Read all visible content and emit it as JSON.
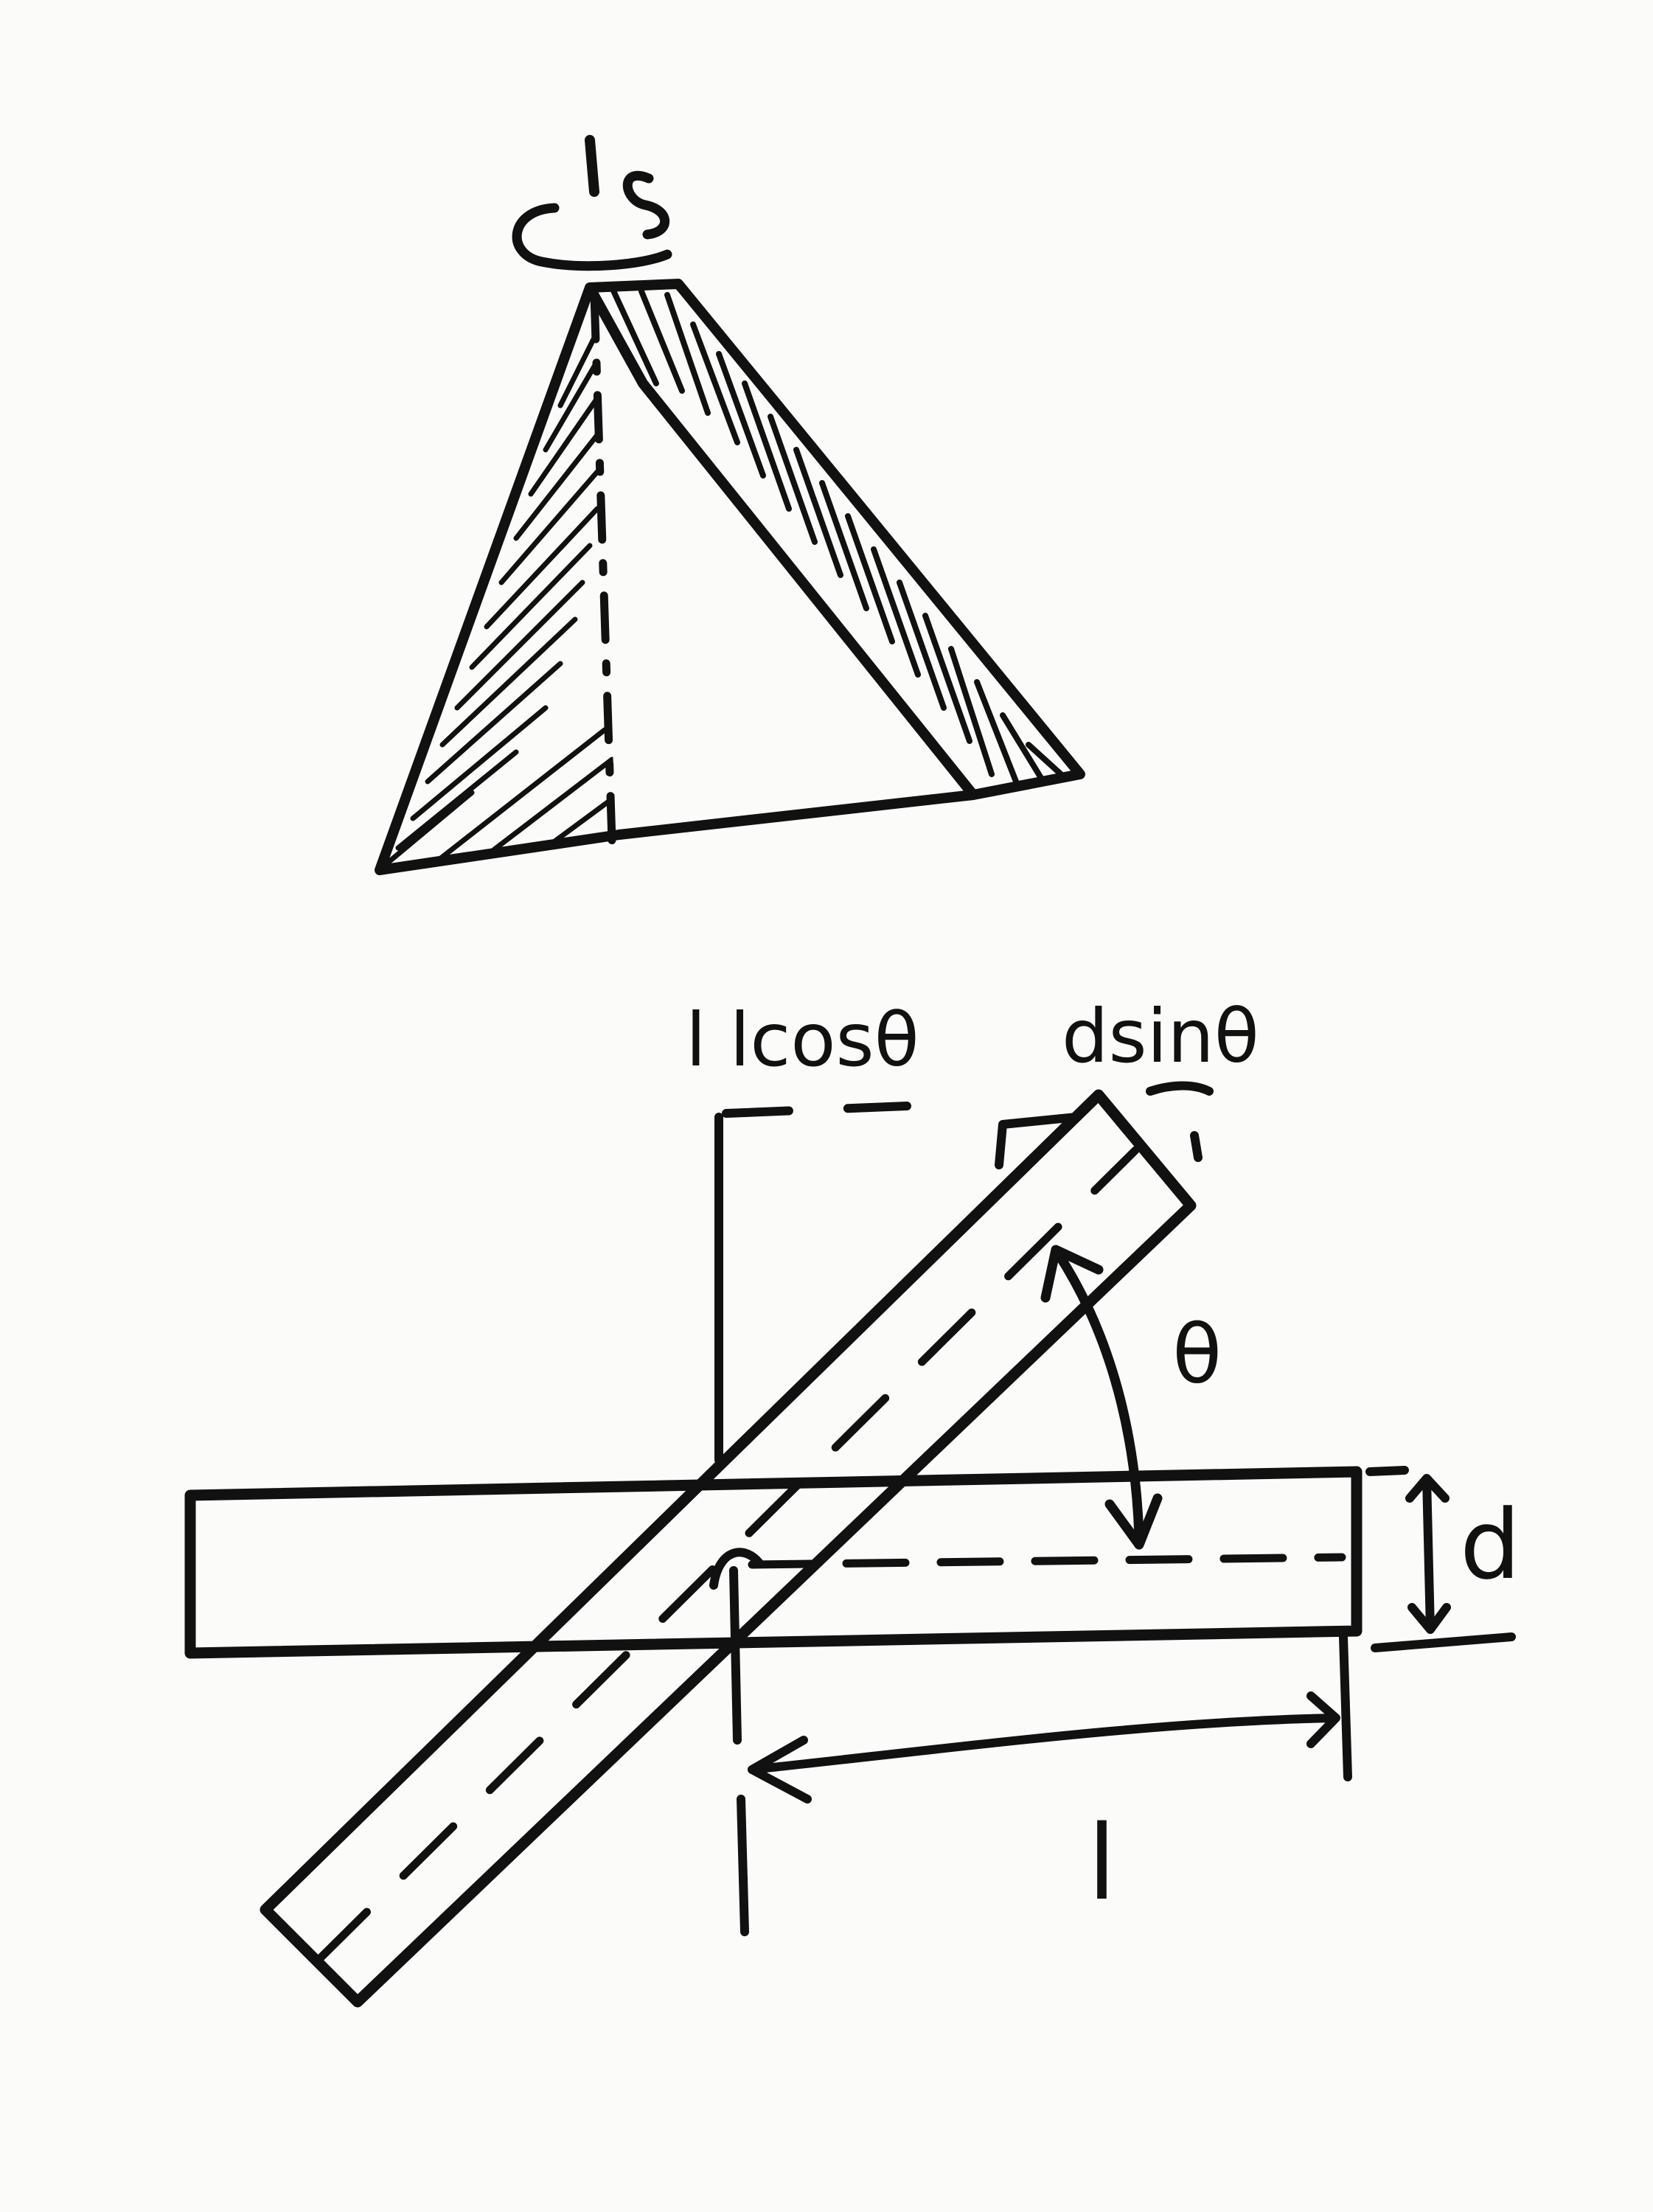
{
  "labels": {
    "horizontal_projection": "l lcosθ",
    "vertical_projection": "dsinθ",
    "angle": "θ",
    "thickness": "d",
    "length": "l"
  },
  "colors": {
    "ink": "#111111",
    "paper": "#fbfbfa"
  }
}
